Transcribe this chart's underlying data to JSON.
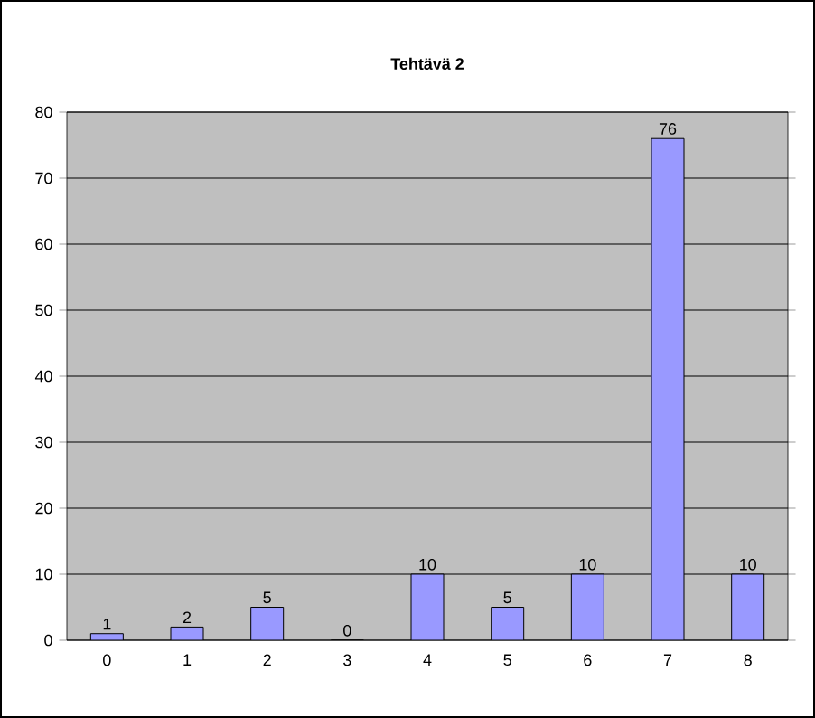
{
  "chart_data": {
    "type": "bar",
    "title": "Tehtävä 2",
    "categories": [
      "0",
      "1",
      "2",
      "3",
      "4",
      "5",
      "6",
      "7",
      "8"
    ],
    "values": [
      1,
      2,
      5,
      0,
      10,
      5,
      10,
      76,
      10
    ],
    "color": "#9999ff",
    "ylim": [
      0,
      80
    ],
    "yticks": [
      0,
      10,
      20,
      30,
      40,
      50,
      60,
      70,
      80
    ],
    "grid": "y",
    "data_labels": true
  }
}
